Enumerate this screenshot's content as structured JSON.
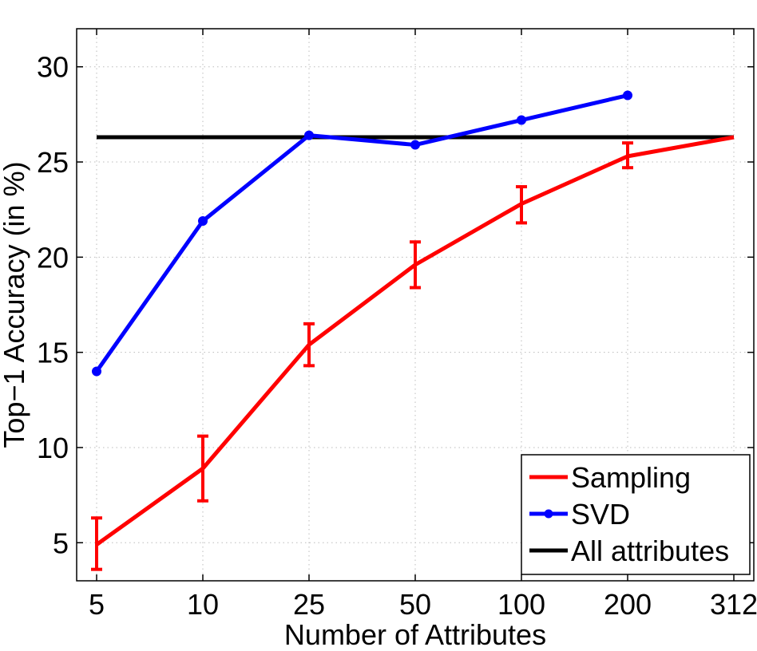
{
  "chart_data": {
    "type": "line",
    "title": "",
    "xlabel": "Number of Attributes",
    "ylabel": "Top−1 Accuracy (in %)",
    "categories": [
      "5",
      "10",
      "25",
      "50",
      "100",
      "200",
      "312"
    ],
    "ylim": [
      3,
      32
    ],
    "yticks": [
      5,
      10,
      15,
      20,
      25,
      30
    ],
    "grid": true,
    "legend_position": "bottom-right",
    "series": [
      {
        "name": "Sampling",
        "color": "#ff0000",
        "marker": "none",
        "values": [
          4.9,
          8.9,
          15.4,
          19.6,
          22.8,
          25.3,
          26.3
        ],
        "error_low": [
          3.6,
          7.2,
          14.3,
          18.4,
          21.8,
          24.7,
          null
        ],
        "error_high": [
          6.3,
          10.6,
          16.5,
          20.8,
          23.7,
          26.0,
          null
        ]
      },
      {
        "name": "SVD",
        "color": "#0000ff",
        "marker": "circle",
        "values": [
          14.0,
          21.9,
          26.4,
          25.9,
          27.2,
          28.5,
          null
        ]
      },
      {
        "name": "All attributes",
        "color": "#000000",
        "marker": "none",
        "values": [
          26.3,
          26.3,
          26.3,
          26.3,
          26.3,
          26.3,
          26.3
        ]
      }
    ]
  }
}
